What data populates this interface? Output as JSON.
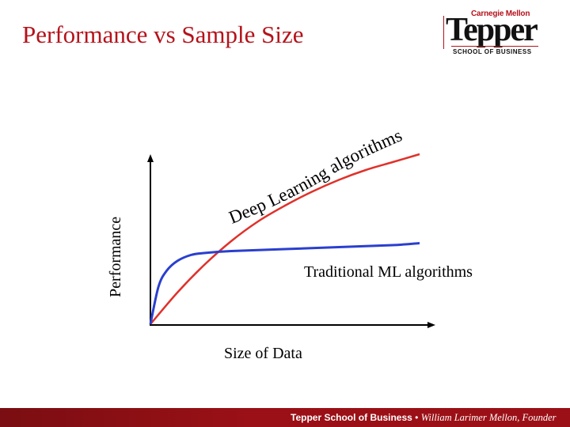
{
  "slide": {
    "title": "Performance vs Sample Size"
  },
  "logo": {
    "line1": "Carnegie Mellon",
    "line2": "Tepper",
    "line3": "SCHOOL OF BUSINESS"
  },
  "footer": {
    "org": "Tepper School of Business",
    "separator": "•",
    "founder": "William Larimer Mellon, Founder"
  },
  "colors": {
    "title": "#b5121b",
    "deep_learning_curve": "#e0312a",
    "traditional_ml_curve": "#2a3fcf",
    "footer": "#9b1016"
  },
  "chart_data": {
    "type": "line",
    "title": "",
    "xlabel": "Size of Data",
    "ylabel": "Performance",
    "grid": false,
    "axes_numeric_ticks": false,
    "series": [
      {
        "name": "Deep Learning algorithms",
        "label_style": "curved text along curve",
        "color": "#e0312a",
        "x": [
          0,
          0.1,
          0.2,
          0.3,
          0.4,
          0.5,
          0.6,
          0.7,
          0.8,
          0.9,
          1.0
        ],
        "values": [
          0,
          0.16,
          0.3,
          0.42,
          0.52,
          0.6,
          0.67,
          0.73,
          0.78,
          0.82,
          0.86
        ]
      },
      {
        "name": "Traditional ML algorithms",
        "color": "#2a3fcf",
        "x": [
          0,
          0.03,
          0.06,
          0.1,
          0.15,
          0.2,
          0.3,
          0.5,
          0.7,
          0.9,
          1.0
        ],
        "values": [
          0,
          0.19,
          0.27,
          0.32,
          0.35,
          0.36,
          0.37,
          0.38,
          0.39,
          0.4,
          0.41
        ]
      }
    ]
  }
}
